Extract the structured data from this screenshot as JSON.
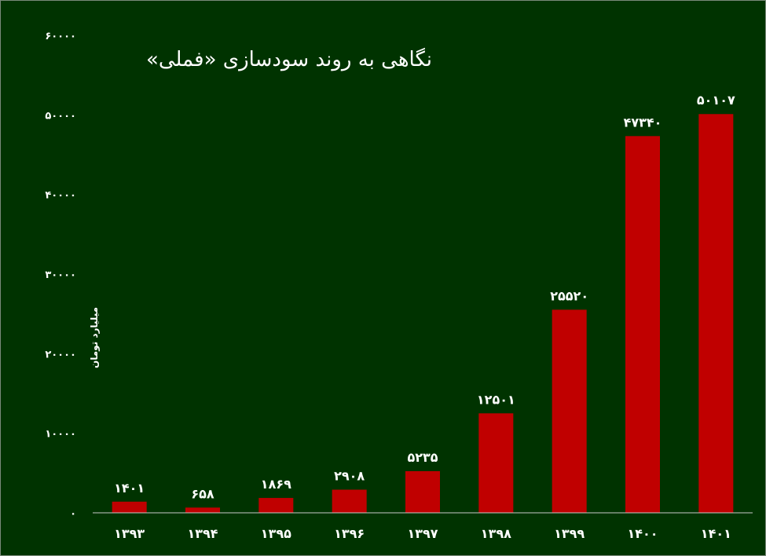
{
  "chart_data": {
    "type": "bar",
    "title": "نگاهی به روند سودسازی «فملی»",
    "ylabel": "میلیارد تومان",
    "xlabel": "",
    "categories": [
      "۱۳۹۳",
      "۱۳۹۴",
      "۱۳۹۵",
      "۱۳۹۶",
      "۱۳۹۷",
      "۱۳۹۸",
      "۱۳۹۹",
      "۱۴۰۰",
      "۱۴۰۱"
    ],
    "values": [
      1401,
      658,
      1869,
      2908,
      5235,
      12501,
      25520,
      47340,
      50107
    ],
    "data_labels": [
      "۱۴۰۱",
      "۶۵۸",
      "۱۸۶۹",
      "۲۹۰۸",
      "۵۲۳۵",
      "۱۲۵۰۱",
      "۲۵۵۲۰",
      "۴۷۳۴۰",
      "۵۰۱۰۷"
    ],
    "yticks": [
      0,
      10000,
      20000,
      30000,
      40000,
      50000,
      60000
    ],
    "ytick_labels": [
      "۰",
      "۱۰۰۰۰",
      "۲۰۰۰۰",
      "۳۰۰۰۰",
      "۴۰۰۰۰",
      "۵۰۰۰۰",
      "۶۰۰۰۰"
    ],
    "ylim": [
      0,
      60000
    ],
    "grid": false,
    "legend": "none",
    "colors": {
      "background": "#003300",
      "bar": "#c00000",
      "text": "#ffffff",
      "axis": "#c8c8c8"
    }
  }
}
